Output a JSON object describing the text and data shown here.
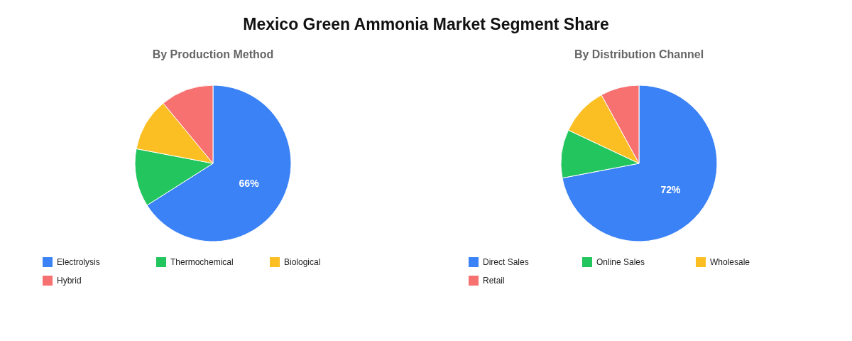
{
  "chart_data": [
    {
      "type": "pie",
      "title": "Mexico Green Ammonia Market Segment Share",
      "subtitle": "By Production Method",
      "categories": [
        "Electrolysis",
        "Thermochemical",
        "Biological",
        "Hybrid"
      ],
      "values": [
        66,
        12,
        11,
        11
      ],
      "colors": [
        "#3b82f6",
        "#22c55e",
        "#fbbf24",
        "#f87171"
      ],
      "value_labels": [
        "66%",
        null,
        null,
        null
      ],
      "legend": "bottom"
    },
    {
      "type": "pie",
      "subtitle": "By Distribution Channel",
      "categories": [
        "Direct Sales",
        "Online Sales",
        "Wholesale",
        "Retail"
      ],
      "values": [
        72,
        10,
        10,
        8
      ],
      "colors": [
        "#3b82f6",
        "#22c55e",
        "#fbbf24",
        "#f87171"
      ],
      "value_labels": [
        "72%",
        null,
        null,
        null
      ],
      "legend": "bottom"
    }
  ]
}
